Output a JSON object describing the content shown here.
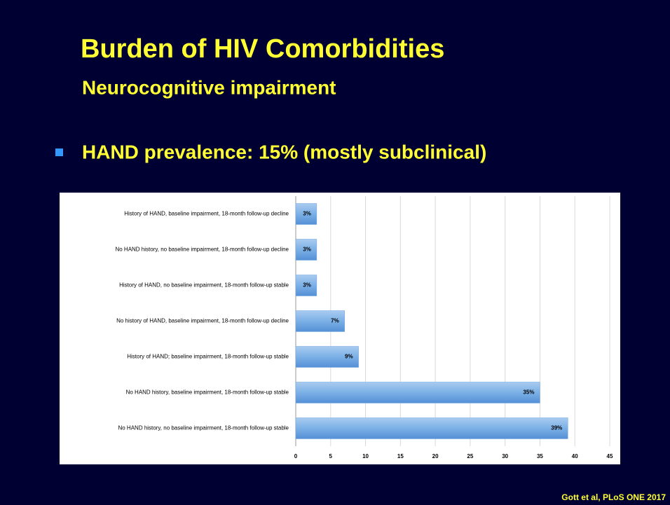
{
  "slide": {
    "title": "Burden of HIV Comorbidities",
    "subtitle": "Neurocognitive impairment",
    "bullet": "HAND prevalence: 15% (mostly subclinical)",
    "citation": "Gott et al, PLoS ONE 2017"
  },
  "chart_data": {
    "type": "hbar",
    "categories": [
      "History of HAND, baseline impairment, 18-month follow-up decline",
      "No HAND history, no baseline impairment, 18-month follow-up decline",
      "History of HAND, no baseline impairment, 18-month follow-up stable",
      "No history of HAND, baseline impairment, 18-month follow-up decline",
      "History of HAND; baseline impairment, 18-month follow-up stable",
      "No HAND history, baseline impairment, 18-month follow-up stable",
      "No HAND history, no baseline impairment, 18-month follow-up stable"
    ],
    "values": [
      3,
      3,
      3,
      7,
      9,
      35,
      39
    ],
    "value_labels": [
      "3%",
      "3%",
      "3%",
      "7%",
      "9%",
      "35%",
      "39%"
    ],
    "color": "#6fa5e0",
    "xlim": [
      0,
      45
    ],
    "xticks": [
      0,
      5,
      10,
      15,
      20,
      25,
      30,
      35,
      40,
      45
    ],
    "grid": true
  }
}
